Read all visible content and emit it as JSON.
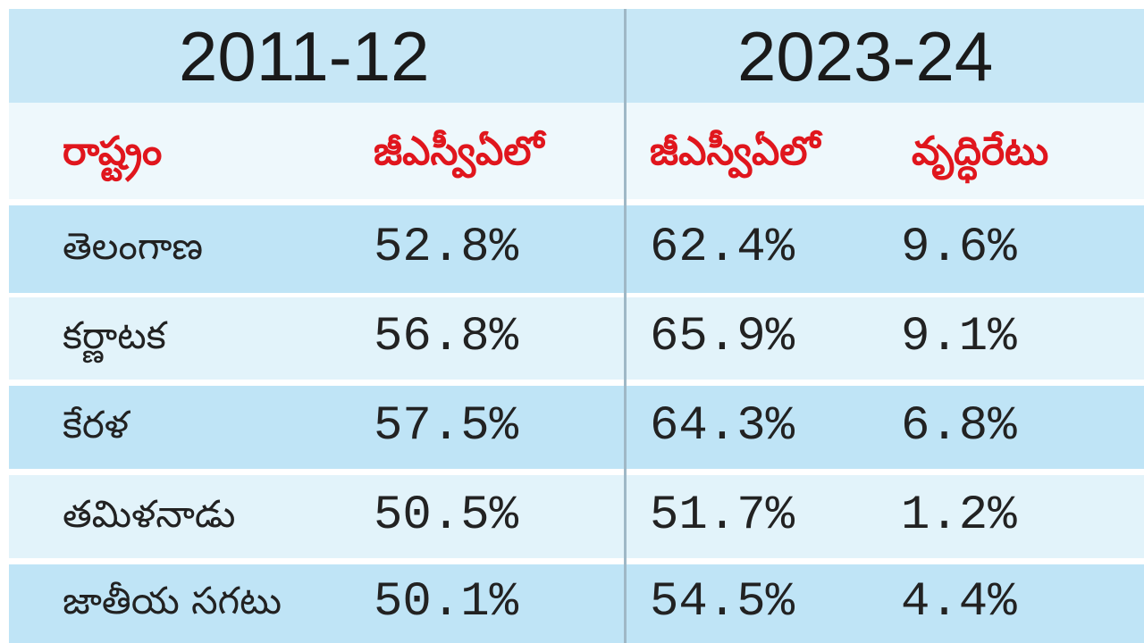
{
  "table": {
    "periods": [
      "2011-12",
      "2023-24"
    ],
    "header": [
      "రాష్ట్రం",
      "జీఎస్వీఏలో",
      "జీఎస్వీఏలో",
      "వృద్ధిరేటు"
    ],
    "rows": [
      [
        "తెలంగాణ",
        "52.8%",
        "62.4%",
        "9.6%"
      ],
      [
        "కర్ణాటక",
        "56.8%",
        "65.9%",
        "9.1%"
      ],
      [
        "కేరళ",
        "57.5%",
        "64.3%",
        "6.8%"
      ],
      [
        "తమిళనాడు",
        "50.5%",
        "51.7%",
        "1.2%"
      ],
      [
        "జాతీయ సగటు",
        "50.1%",
        "54.5%",
        "4.4%"
      ]
    ]
  }
}
